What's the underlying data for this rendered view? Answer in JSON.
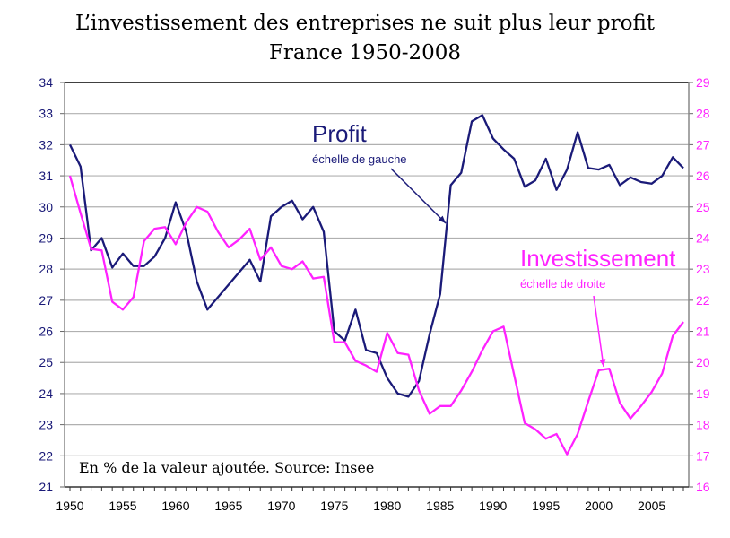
{
  "chart_data": {
    "type": "line",
    "title": "L’investissement des entreprises ne suit plus leur profit",
    "subtitle": "France 1950-2008",
    "note": "En % de la valeur ajoutée. Source: Insee",
    "x_ticks": [
      "1950",
      "1955",
      "1960",
      "1965",
      "1970",
      "1975",
      "1980",
      "1985",
      "1990",
      "1995",
      "2000",
      "2005"
    ],
    "xlim": [
      1950,
      2008
    ],
    "ylim_left": [
      21,
      34
    ],
    "ylim_right": [
      16,
      29
    ],
    "y_ticks_left": [
      "21",
      "22",
      "23",
      "24",
      "25",
      "26",
      "27",
      "28",
      "29",
      "30",
      "31",
      "32",
      "33",
      "34"
    ],
    "y_ticks_right": [
      "16",
      "17",
      "18",
      "19",
      "20",
      "21",
      "22",
      "23",
      "24",
      "25",
      "26",
      "27",
      "28",
      "29"
    ],
    "grid": true,
    "x": [
      1950,
      1951,
      1952,
      1953,
      1954,
      1955,
      1956,
      1957,
      1958,
      1959,
      1960,
      1961,
      1962,
      1963,
      1964,
      1965,
      1966,
      1967,
      1968,
      1969,
      1970,
      1971,
      1972,
      1973,
      1974,
      1975,
      1976,
      1977,
      1978,
      1979,
      1980,
      1981,
      1982,
      1983,
      1984,
      1985,
      1986,
      1987,
      1988,
      1989,
      1990,
      1991,
      1992,
      1993,
      1994,
      1995,
      1996,
      1997,
      1998,
      1999,
      2000,
      2001,
      2002,
      2003,
      2004,
      2005,
      2006,
      2007,
      2008
    ],
    "series": [
      {
        "name": "Profit",
        "axis": "left",
        "color": "#1a1a78",
        "label": "Profit",
        "sublabel": "échelle de gauche",
        "values": [
          32.0,
          31.3,
          28.6,
          29.0,
          28.05,
          28.5,
          28.1,
          28.1,
          28.4,
          29.0,
          30.15,
          29.2,
          27.6,
          26.7,
          27.1,
          27.5,
          27.9,
          28.3,
          27.6,
          29.7,
          30.0,
          30.2,
          29.6,
          30.0,
          29.2,
          26.0,
          25.7,
          26.7,
          25.4,
          25.3,
          24.5,
          24.0,
          23.9,
          24.4,
          25.9,
          27.2,
          30.7,
          31.1,
          32.75,
          32.95,
          32.2,
          31.85,
          31.55,
          30.65,
          30.85,
          31.55,
          30.55,
          31.2,
          32.4,
          31.25,
          31.2,
          31.35,
          30.7,
          30.95,
          30.8,
          30.75,
          31.0,
          31.6,
          31.25
        ]
      },
      {
        "name": "Investissement",
        "axis": "right",
        "color": "#ff22ff",
        "label": "Investissement",
        "sublabel": "échelle de droite",
        "values": [
          26.0,
          24.8,
          23.65,
          23.6,
          21.95,
          21.7,
          22.1,
          23.9,
          24.3,
          24.35,
          23.8,
          24.5,
          25.0,
          24.85,
          24.2,
          23.7,
          23.95,
          24.3,
          23.3,
          23.7,
          23.1,
          23.0,
          23.25,
          22.7,
          22.75,
          20.65,
          20.65,
          20.05,
          19.9,
          19.7,
          20.95,
          20.3,
          20.25,
          19.1,
          18.35,
          18.6,
          18.6,
          19.1,
          19.7,
          20.4,
          21.0,
          21.15,
          19.6,
          18.05,
          17.85,
          17.55,
          17.7,
          17.05,
          17.7,
          18.75,
          19.75,
          19.8,
          18.7,
          18.2,
          18.6,
          19.05,
          19.65,
          20.85,
          21.3
        ]
      }
    ],
    "legend": "inline-annotations"
  }
}
